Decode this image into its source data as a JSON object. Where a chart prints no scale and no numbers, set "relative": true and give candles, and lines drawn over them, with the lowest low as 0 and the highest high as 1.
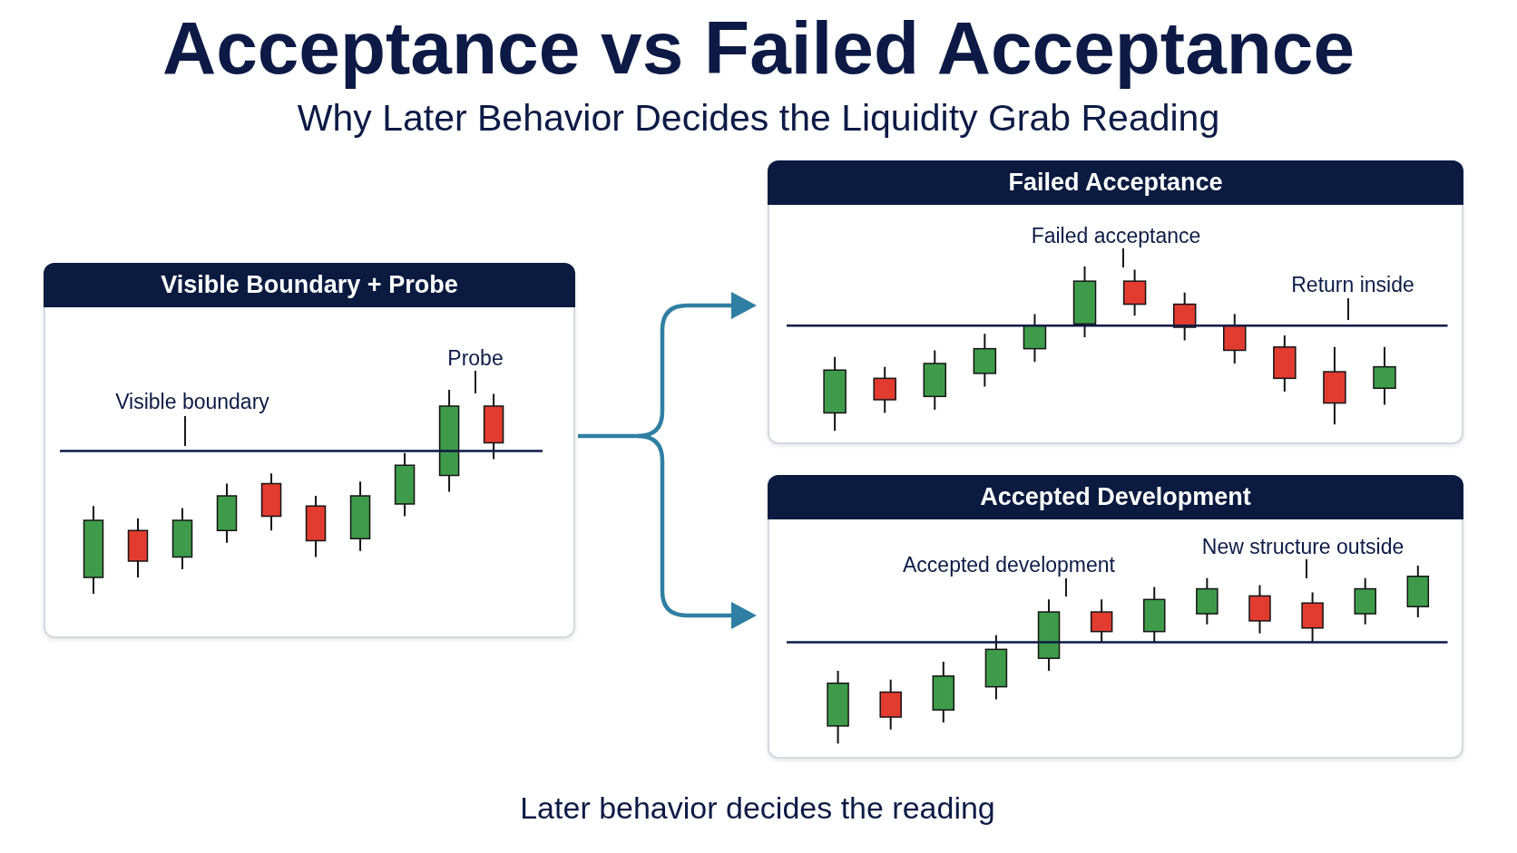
{
  "chart_data": [
    {
      "type": "other",
      "title": "Acceptance vs Failed Acceptance",
      "subtitle": "Why Later Behavior Decides the Liquidity Grab Reading"
    },
    {
      "type": "candlestick",
      "title": "Visible Boundary + Probe",
      "relative": true,
      "categories": [
        null,
        null,
        null,
        null,
        null,
        null,
        null,
        null,
        null,
        null
      ],
      "ohlc": [
        [
          0.08,
          0.43,
          0,
          0.36
        ],
        [
          0.31,
          0.37,
          0.08,
          0.16
        ],
        [
          0.18,
          0.42,
          0.12,
          0.36
        ],
        [
          0.31,
          0.54,
          0.25,
          0.48
        ],
        [
          0.54,
          0.59,
          0.31,
          0.38
        ],
        [
          0.43,
          0.48,
          0.18,
          0.26
        ],
        [
          0.27,
          0.55,
          0.21,
          0.48
        ],
        [
          0.44,
          0.69,
          0.38,
          0.63
        ],
        [
          0.58,
          1,
          0.5,
          0.92
        ],
        [
          0.92,
          0.98,
          0.66,
          0.74
        ]
      ],
      "colors": [
        "#3e9b4a",
        "#e23b30",
        "#3e9b4a",
        "#3e9b4a",
        "#e23b30",
        "#e23b30",
        "#3e9b4a",
        "#3e9b4a",
        "#3e9b4a",
        "#e23b30"
      ],
      "ref_lines": [
        {
          "axis": "y",
          "value": 0.7,
          "label": "Visible boundary",
          "color": "#0c1a45"
        }
      ],
      "annotations": [
        "Probe"
      ]
    },
    {
      "type": "candlestick",
      "title": "Failed Acceptance",
      "relative": true,
      "categories": [
        null,
        null,
        null,
        null,
        null,
        null,
        null,
        null,
        null,
        null,
        null,
        null
      ],
      "ohlc": [
        [
          0.11,
          0.45,
          0,
          0.37
        ],
        [
          0.32,
          0.39,
          0.11,
          0.19
        ],
        [
          0.21,
          0.49,
          0.13,
          0.41
        ],
        [
          0.35,
          0.59,
          0.27,
          0.5
        ],
        [
          0.5,
          0.71,
          0.42,
          0.64
        ],
        [
          0.65,
          1,
          0.57,
          0.91
        ],
        [
          0.91,
          0.98,
          0.7,
          0.77
        ],
        [
          0.77,
          0.84,
          0.55,
          0.63
        ],
        [
          0.64,
          0.71,
          0.41,
          0.49
        ],
        [
          0.51,
          0.58,
          0.24,
          0.32
        ],
        [
          0.36,
          0.51,
          0.04,
          0.17
        ],
        [
          0.26,
          0.51,
          0.16,
          0.39
        ]
      ],
      "colors": [
        "#3e9b4a",
        "#e23b30",
        "#3e9b4a",
        "#3e9b4a",
        "#3e9b4a",
        "#3e9b4a",
        "#e23b30",
        "#e23b30",
        "#e23b30",
        "#e23b30",
        "#e23b30",
        "#3e9b4a"
      ],
      "ref_lines": [
        {
          "axis": "y",
          "value": 0.64,
          "color": "#0c1a45"
        }
      ],
      "annotations": [
        "Failed acceptance",
        "Return inside"
      ]
    },
    {
      "type": "candlestick",
      "title": "Accepted Development",
      "relative": true,
      "categories": [
        null,
        null,
        null,
        null,
        null,
        null,
        null,
        null,
        null,
        null,
        null,
        null
      ],
      "ohlc": [
        [
          0.1,
          0.41,
          0,
          0.34
        ],
        [
          0.29,
          0.36,
          0.08,
          0.15
        ],
        [
          0.19,
          0.46,
          0.12,
          0.38
        ],
        [
          0.32,
          0.61,
          0.25,
          0.53
        ],
        [
          0.48,
          0.81,
          0.41,
          0.74
        ],
        [
          0.74,
          0.81,
          0.57,
          0.63
        ],
        [
          0.63,
          0.88,
          0.57,
          0.81
        ],
        [
          0.73,
          0.93,
          0.67,
          0.87
        ],
        [
          0.83,
          0.89,
          0.62,
          0.69
        ],
        [
          0.79,
          0.85,
          0.57,
          0.65
        ],
        [
          0.73,
          0.93,
          0.67,
          0.87
        ],
        [
          0.77,
          1,
          0.71,
          0.94
        ]
      ],
      "colors": [
        "#3e9b4a",
        "#e23b30",
        "#3e9b4a",
        "#3e9b4a",
        "#3e9b4a",
        "#e23b30",
        "#3e9b4a",
        "#3e9b4a",
        "#e23b30",
        "#e23b30",
        "#3e9b4a",
        "#3e9b4a"
      ],
      "ref_lines": [
        {
          "axis": "y",
          "value": 0.57,
          "color": "#0c1a45"
        }
      ],
      "annotations": [
        "Accepted development",
        "New structure outside"
      ]
    },
    {
      "type": "other",
      "annotations": [
        "Later behavior decides the reading"
      ]
    }
  ]
}
